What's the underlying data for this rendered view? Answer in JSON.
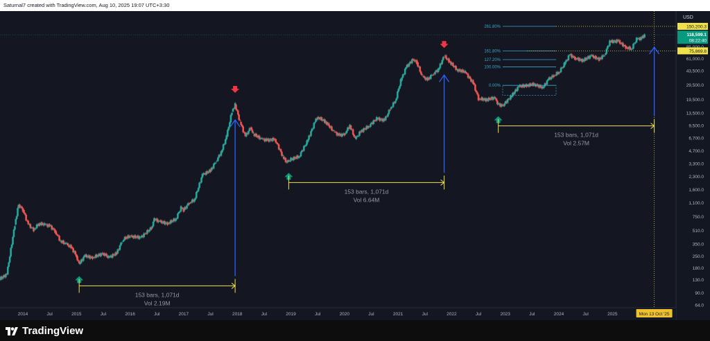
{
  "header": {
    "caption": "Saturnal7 created with TradingView.com, Aug 10, 2025 19:07 UTC+3:30"
  },
  "footer": {
    "brand": "TradingView"
  },
  "chart_data": {
    "type": "candlestick",
    "currency": "USD",
    "scale": "log",
    "ylim": [
      60,
      260000
    ],
    "grid": false,
    "y_ticks": [
      "150,200.3",
      "85,000.0",
      "61,000.0",
      "43,500.0",
      "29,500.0",
      "19,500.0",
      "13,500.0",
      "9,500.0",
      "6,700.0",
      "4,700.0",
      "3,300.0",
      "2,300.0",
      "1,600.0",
      "1,100.0",
      "750.0",
      "510.0",
      "350.0",
      "250.0",
      "180.0",
      "130.0",
      "90.0",
      "64.0"
    ],
    "y_tick_values": [
      150200.3,
      85000,
      61000,
      43500,
      29500,
      19500,
      13500,
      9500,
      6700,
      4700,
      3300,
      2300,
      1600,
      1100,
      750,
      510,
      350,
      250,
      180,
      130,
      90,
      64
    ],
    "x_ticks": [
      {
        "label": "2014",
        "date": 2014.0
      },
      {
        "label": "Jul",
        "date": 2014.5
      },
      {
        "label": "2015",
        "date": 2015.0
      },
      {
        "label": "Jul",
        "date": 2015.5
      },
      {
        "label": "2016",
        "date": 2016.0
      },
      {
        "label": "Jul",
        "date": 2016.5
      },
      {
        "label": "2017",
        "date": 2017.0
      },
      {
        "label": "Jul",
        "date": 2017.5
      },
      {
        "label": "2018",
        "date": 2018.0
      },
      {
        "label": "Jul",
        "date": 2018.5
      },
      {
        "label": "2019",
        "date": 2019.0
      },
      {
        "label": "Jul",
        "date": 2019.5
      },
      {
        "label": "2020",
        "date": 2020.0
      },
      {
        "label": "Jul",
        "date": 2020.5
      },
      {
        "label": "2021",
        "date": 2021.0
      },
      {
        "label": "Jul",
        "date": 2021.5
      },
      {
        "label": "2022",
        "date": 2022.0
      },
      {
        "label": "Jul",
        "date": 2022.5
      },
      {
        "label": "2023",
        "date": 2023.0
      },
      {
        "label": "Jul",
        "date": 2023.5
      },
      {
        "label": "2024",
        "date": 2024.0
      },
      {
        "label": "Jul",
        "date": 2024.5
      },
      {
        "label": "2025",
        "date": 2025.0
      },
      {
        "label": "Jul",
        "date": 2025.5
      }
    ],
    "series": [
      {
        "x": [
          2013.4,
          2013.55,
          2013.7,
          2013.85,
          2013.92,
          2014.0,
          2014.1,
          2014.2,
          2014.3,
          2014.4,
          2014.5,
          2014.6,
          2014.7,
          2014.8,
          2014.9,
          2015.0,
          2015.05,
          2015.15,
          2015.3,
          2015.5,
          2015.6,
          2015.75,
          2015.85,
          2015.92,
          2016.0,
          2016.2,
          2016.4,
          2016.45,
          2016.55,
          2016.7,
          2016.85,
          2016.95,
          2017.0,
          2017.1,
          2017.2,
          2017.35,
          2017.5,
          2017.6,
          2017.7,
          2017.8,
          2017.9,
          2017.96,
          2018.05,
          2018.15,
          2018.25,
          2018.3,
          2018.45,
          2018.55,
          2018.7,
          2018.85,
          2018.92,
          2019.0,
          2019.15,
          2019.3,
          2019.45,
          2019.5,
          2019.65,
          2019.8,
          2019.9,
          2020.0,
          2020.1,
          2020.2,
          2020.3,
          2020.45,
          2020.6,
          2020.75,
          2020.85,
          2020.95,
          2021.05,
          2021.15,
          2021.28,
          2021.35,
          2021.45,
          2021.55,
          2021.65,
          2021.75,
          2021.86,
          2021.95,
          2022.1,
          2022.25,
          2022.4,
          2022.5,
          2022.65,
          2022.8,
          2022.87,
          2022.95,
          2023.1,
          2023.25,
          2023.4,
          2023.55,
          2023.7,
          2023.8,
          2023.9,
          2024.0,
          2024.1,
          2024.2,
          2024.3,
          2024.45,
          2024.6,
          2024.75,
          2024.85,
          2024.95,
          2025.1,
          2025.25,
          2025.35,
          2025.45,
          2025.55,
          2025.6
        ],
        "close": [
          110,
          130,
          150,
          600,
          1050,
          900,
          600,
          520,
          620,
          600,
          580,
          500,
          380,
          350,
          320,
          250,
          200,
          250,
          240,
          270,
          240,
          270,
          380,
          420,
          430,
          420,
          550,
          700,
          650,
          620,
          700,
          960,
          900,
          1100,
          1200,
          2400,
          2700,
          3500,
          4500,
          7000,
          14000,
          17000,
          10500,
          7000,
          9000,
          7500,
          6500,
          6300,
          6500,
          4000,
          3400,
          3700,
          4000,
          6000,
          10500,
          12000,
          10500,
          8000,
          7200,
          7500,
          9500,
          6500,
          8000,
          9300,
          11500,
          11000,
          15000,
          19000,
          33000,
          48000,
          60000,
          55000,
          37000,
          34000,
          40000,
          45000,
          66000,
          57000,
          45000,
          42000,
          31000,
          20000,
          19500,
          20500,
          17000,
          16500,
          21000,
          28000,
          29000,
          30000,
          27000,
          34000,
          38000,
          42000,
          52000,
          68000,
          62000,
          58000,
          66000,
          60000,
          68000,
          98000,
          100000,
          84000,
          80000,
          105000,
          108000,
          118599
        ]
      }
    ],
    "highs": {
      "2017": {
        "date": 2017.96,
        "price": 19800
      },
      "2021": {
        "date": 2021.86,
        "price": 69000
      }
    },
    "lows": {
      "2015": {
        "date": 2015.05,
        "price": 180
      },
      "2018": {
        "date": 2018.96,
        "price": 3200
      },
      "2022": {
        "date": 2022.87,
        "price": 15500
      }
    },
    "price_labels": {
      "projection": "150,200.3",
      "current": "118,599.1",
      "countdown": "08:22:40",
      "prior_high": "75,869.8"
    },
    "fib_levels": [
      {
        "label": "261.80%",
        "price": 150200.3
      },
      {
        "label": "161.80%",
        "price": 75869.8
      },
      {
        "label": "127.20%",
        "price": 59500
      },
      {
        "label": "100.00%",
        "price": 48500
      },
      {
        "label": "0.00%",
        "price": 29000
      }
    ],
    "cycle_ranges": [
      {
        "label": "153 bars, 1,071d",
        "vol": "Vol 2.19M",
        "start": 2015.05,
        "end": 2017.96
      },
      {
        "label": "153 bars, 1,071d",
        "vol": "Vol 6.64M",
        "start": 2018.96,
        "end": 2021.86
      },
      {
        "label": "153 bars, 1,071d",
        "vol": "Vol 2.57M",
        "start": 2022.87,
        "end": 2025.78
      }
    ],
    "cursor_label": "Mon 13 Oct '25",
    "cursor_date": 2025.78,
    "colors": {
      "up": "#26a69a",
      "down": "#ef5350",
      "range": "#f0e14a",
      "arrow": "#2962ff",
      "fib": "#3aa7c9",
      "marker_down": "#f23645",
      "marker_up": "#089981"
    }
  }
}
